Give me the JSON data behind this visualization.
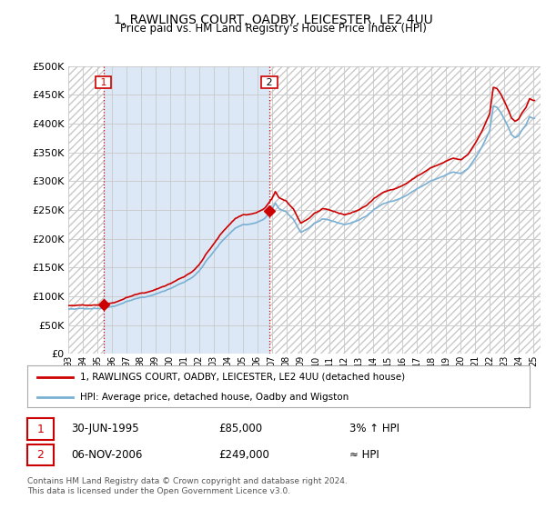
{
  "title": "1, RAWLINGS COURT, OADBY, LEICESTER, LE2 4UU",
  "subtitle": "Price paid vs. HM Land Registry's House Price Index (HPI)",
  "legend_line1": "1, RAWLINGS COURT, OADBY, LEICESTER, LE2 4UU (detached house)",
  "legend_line2": "HPI: Average price, detached house, Oadby and Wigston",
  "sale1_date": "30-JUN-1995",
  "sale1_price": "£85,000",
  "sale1_hpi": "3% ↑ HPI",
  "sale2_date": "06-NOV-2006",
  "sale2_price": "£249,000",
  "sale2_hpi": "≈ HPI",
  "copyright": "Contains HM Land Registry data © Crown copyright and database right 2024.\nThis data is licensed under the Open Government Licence v3.0.",
  "sale_color": "#cc0000",
  "hpi_color": "#7ab0d4",
  "marker_color": "#cc0000",
  "vline_color": "#cc0000",
  "grid_color": "#c8c8c8",
  "bg_color": "#ffffff",
  "plot_bg_white": "#ffffff",
  "plot_bg_blue": "#dce8f5",
  "hatch_color": "#c8c8c8",
  "ylim": [
    0,
    500000
  ],
  "yticks": [
    0,
    50000,
    100000,
    150000,
    200000,
    250000,
    300000,
    350000,
    400000,
    450000,
    500000
  ],
  "sale1_x": 1995.42,
  "sale1_y": 85000,
  "sale2_x": 2006.83,
  "sale2_y": 249000,
  "xmin": 1993.0,
  "xmax": 2025.5
}
